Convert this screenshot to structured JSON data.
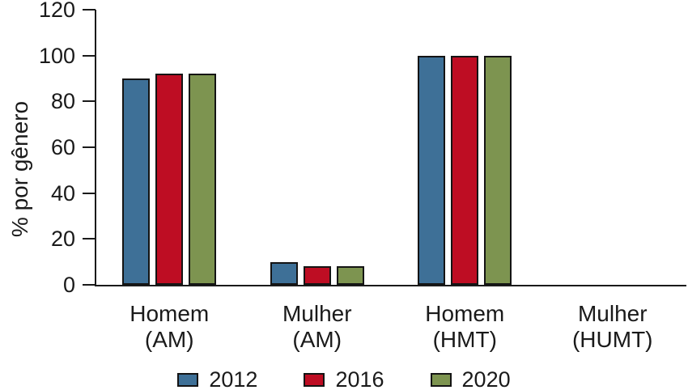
{
  "figure": {
    "background": "#ffffff",
    "text_color": "#1a1a1a",
    "axis_color": "#1a1a1a"
  },
  "chart_data": {
    "type": "bar",
    "title": "",
    "xlabel": "",
    "ylabel": "% por gênero",
    "categories": [
      "Homem (AM)",
      "Mulher (AM)",
      "Homem (HMT)",
      "Mulher (HUMT)"
    ],
    "series": [
      {
        "name": "2012",
        "color": "#3e7097",
        "values": [
          90,
          10,
          100,
          0
        ]
      },
      {
        "name": "2016",
        "color": "#be0d23",
        "values": [
          92,
          8,
          100,
          0
        ]
      },
      {
        "name": "2020",
        "color": "#7d9450",
        "values": [
          92,
          8,
          100,
          0
        ]
      }
    ],
    "ylim": [
      0,
      120
    ],
    "yticks": [
      0,
      20,
      40,
      60,
      80,
      100,
      120
    ],
    "grid": false,
    "legend_position": "bottom",
    "bar_border_color": "#141414"
  }
}
